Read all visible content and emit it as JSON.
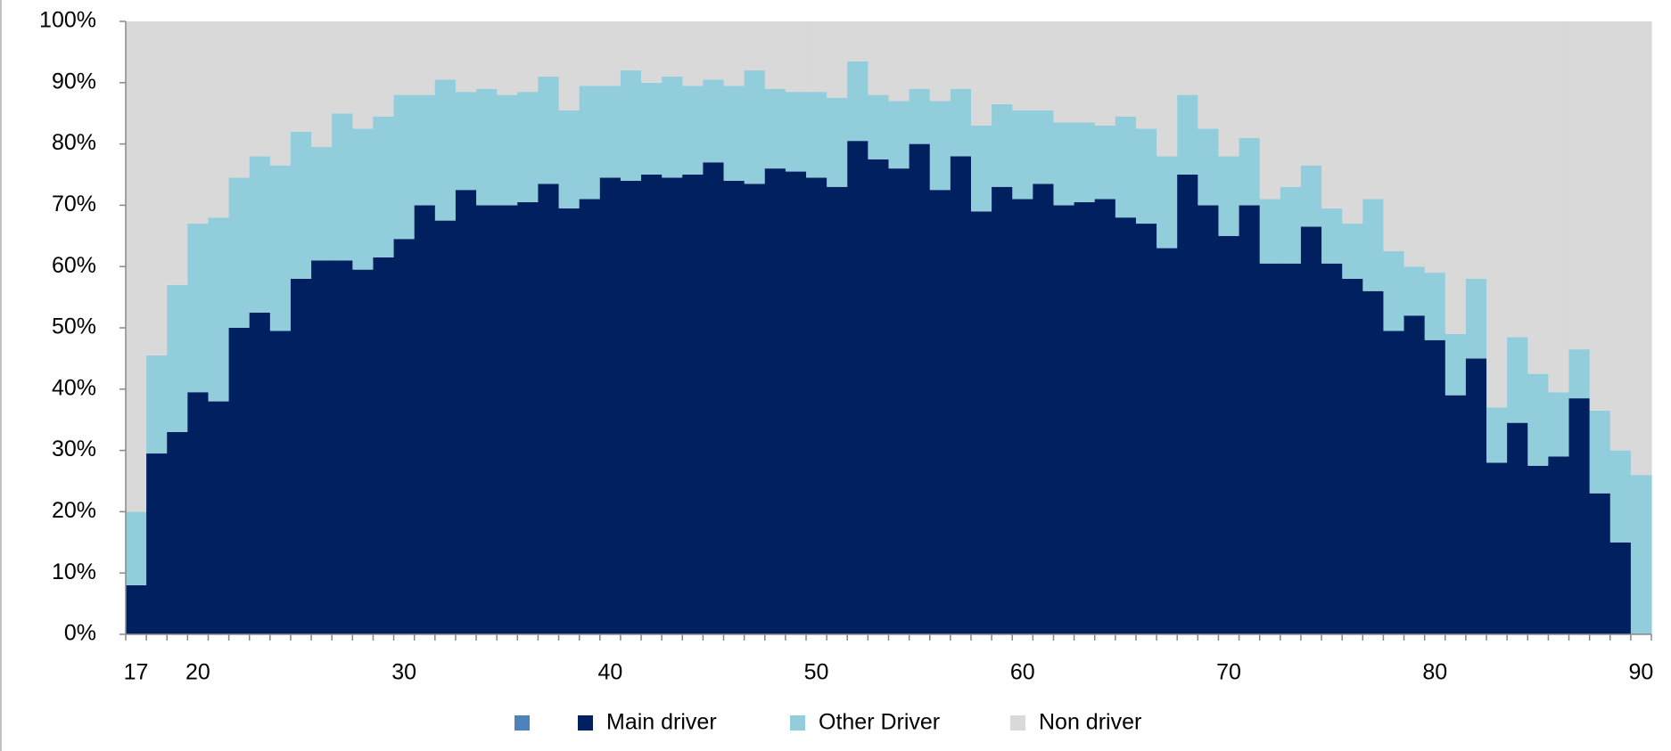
{
  "chart_data": {
    "type": "stacked_bar",
    "categories": [
      "17",
      null,
      null,
      "20",
      null,
      null,
      null,
      null,
      null,
      null,
      null,
      null,
      null,
      "30",
      null,
      null,
      null,
      null,
      null,
      null,
      null,
      null,
      null,
      "40",
      null,
      null,
      null,
      null,
      null,
      null,
      null,
      null,
      null,
      "50",
      null,
      null,
      null,
      null,
      null,
      null,
      null,
      null,
      null,
      "60",
      null,
      null,
      null,
      null,
      null,
      null,
      null,
      null,
      null,
      "70",
      null,
      null,
      null,
      null,
      null,
      null,
      null,
      null,
      null,
      "80",
      null,
      null,
      null,
      null,
      null,
      null,
      null,
      null,
      null,
      "90"
    ],
    "series": [
      {
        "name": "Main driver",
        "color": "#002060",
        "values": [
          8,
          29.5,
          33,
          39.5,
          38,
          50,
          52.5,
          49.5,
          58,
          61,
          61,
          59.5,
          61.5,
          64.5,
          70,
          67.5,
          72.5,
          70,
          70,
          70.5,
          73.5,
          69.5,
          71,
          74.5,
          74,
          75,
          74.5,
          75,
          77,
          74,
          73.5,
          76,
          75.5,
          74.5,
          73,
          80.5,
          77.5,
          76,
          80,
          72.5,
          78,
          69,
          73,
          71,
          73.5,
          70,
          70.5,
          71,
          68,
          67,
          63,
          75,
          70,
          65,
          70,
          60.5,
          60.5,
          66.5,
          60.5,
          58,
          56,
          49.5,
          52,
          48,
          39,
          45,
          28,
          34.5,
          27.5,
          29,
          38.5,
          23,
          15,
          0
        ]
      },
      {
        "name": "Other Driver",
        "color": "#92cddc",
        "values": [
          12,
          16,
          24,
          27.5,
          30,
          24.5,
          25.5,
          27,
          24,
          18.5,
          24,
          23,
          23,
          23.5,
          18,
          23,
          16,
          19,
          18,
          18,
          17.5,
          16,
          18.5,
          15,
          18,
          15,
          16.5,
          14.5,
          13.5,
          15.5,
          18.5,
          13,
          13,
          14,
          14.5,
          13,
          10.5,
          11,
          9,
          14.5,
          11,
          14,
          13.5,
          14.5,
          12,
          13.5,
          13,
          12,
          16.5,
          15.5,
          15,
          13,
          12.5,
          13,
          11,
          10.5,
          12.5,
          10,
          9,
          9,
          15,
          13,
          8,
          11,
          10,
          13,
          9,
          14,
          15,
          10.5,
          8,
          13.5,
          15,
          26
        ]
      },
      {
        "name": "Non driver",
        "color": "#d9d9d9",
        "values": [
          80,
          54.5,
          43,
          33,
          32,
          25.5,
          22,
          23.5,
          18,
          20.5,
          15,
          17.5,
          15.5,
          12,
          12,
          9.5,
          11.5,
          11,
          12,
          11.5,
          9,
          14.5,
          10.5,
          10.5,
          8,
          10,
          9,
          10.5,
          9.5,
          10.5,
          8,
          11,
          11.5,
          11.5,
          12.5,
          6.5,
          12,
          13,
          11,
          13,
          11,
          17,
          13.5,
          14.5,
          14.5,
          16.5,
          16.5,
          17,
          15.5,
          17.5,
          22,
          12,
          17.5,
          22,
          19,
          29,
          27,
          23.5,
          30.5,
          33,
          29,
          37.5,
          40,
          41,
          51,
          42,
          63,
          51.5,
          57.5,
          60.5,
          53.5,
          63.5,
          70,
          74
        ]
      }
    ],
    "ylim": [
      0,
      100
    ],
    "yticks": [
      {
        "value": 0,
        "label": "0%"
      },
      {
        "value": 10,
        "label": "10%"
      },
      {
        "value": 20,
        "label": "20%"
      },
      {
        "value": 30,
        "label": "30%"
      },
      {
        "value": 40,
        "label": "40%"
      },
      {
        "value": 50,
        "label": "50%"
      },
      {
        "value": 60,
        "label": "60%"
      },
      {
        "value": 70,
        "label": "70%"
      },
      {
        "value": 80,
        "label": "80%"
      },
      {
        "value": 90,
        "label": "90%"
      },
      {
        "value": 100,
        "label": "100%"
      }
    ],
    "legend": "bottom"
  }
}
